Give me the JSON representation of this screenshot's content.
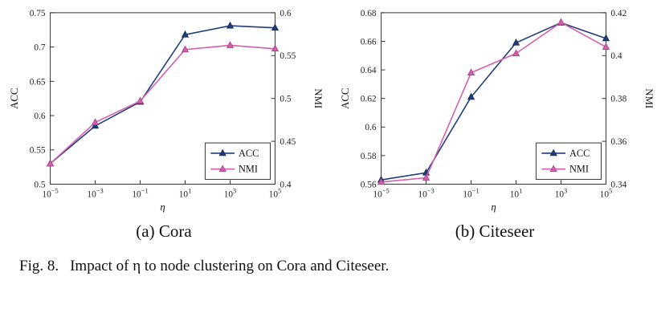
{
  "figure_caption": {
    "label": "Fig. 8.",
    "text": "Impact of η to node clustering on Cora and Citeseer."
  },
  "chart_data": [
    {
      "type": "line",
      "caption": "(a) Cora",
      "xlabel": "η",
      "x_base": "10",
      "x_tick_exponents": [
        "−5",
        "−3",
        "−1",
        "1",
        "3",
        "5"
      ],
      "left_axis": {
        "label": "ACC",
        "min": 0.5,
        "max": 0.75,
        "ticks": [
          0.5,
          0.55,
          0.6,
          0.65,
          0.7,
          0.75
        ],
        "tick_labels": [
          "0.5",
          "0.55",
          "0.6",
          "0.65",
          "0.7",
          "0.75"
        ]
      },
      "right_axis": {
        "label": "NMI",
        "min": 0.4,
        "max": 0.6,
        "ticks": [
          0.4,
          0.45,
          0.5,
          0.55,
          0.6
        ],
        "tick_labels": [
          "0.4",
          "0.45",
          "0.5",
          "0.55",
          "0.6"
        ]
      },
      "series": [
        {
          "name": "ACC",
          "axis": "left",
          "color": "#1f3d7a",
          "edge": "#15294f",
          "values": [
            0.53,
            0.585,
            0.62,
            0.718,
            0.731,
            0.728
          ]
        },
        {
          "name": "NMI",
          "axis": "right",
          "color": "#d45fae",
          "edge": "#a63f86",
          "values": [
            0.424,
            0.472,
            0.497,
            0.557,
            0.562,
            0.558
          ]
        }
      ],
      "legend": {
        "position": "bottom-right",
        "entries": [
          "ACC",
          "NMI"
        ]
      }
    },
    {
      "type": "line",
      "caption": "(b) Citeseer",
      "xlabel": "η",
      "x_base": "10",
      "x_tick_exponents": [
        "−5",
        "−3",
        "−1",
        "1",
        "3",
        "5"
      ],
      "left_axis": {
        "label": "ACC",
        "min": 0.56,
        "max": 0.68,
        "ticks": [
          0.56,
          0.58,
          0.6,
          0.62,
          0.64,
          0.66,
          0.68
        ],
        "tick_labels": [
          "0.56",
          "0.58",
          "0.6",
          "0.62",
          "0.64",
          "0.66",
          "0.68"
        ]
      },
      "right_axis": {
        "label": "NMI",
        "min": 0.34,
        "max": 0.42,
        "ticks": [
          0.34,
          0.36,
          0.38,
          0.4,
          0.42
        ],
        "tick_labels": [
          "0.34",
          "0.36",
          "0.38",
          "0.4",
          "0.42"
        ]
      },
      "series": [
        {
          "name": "ACC",
          "axis": "left",
          "color": "#1f3d7a",
          "edge": "#15294f",
          "values": [
            0.563,
            0.568,
            0.621,
            0.659,
            0.673,
            0.662
          ]
        },
        {
          "name": "NMI",
          "axis": "right",
          "color": "#d45fae",
          "edge": "#a63f86",
          "values": [
            0.341,
            0.343,
            0.392,
            0.401,
            0.4155,
            0.404
          ]
        }
      ],
      "legend": {
        "position": "bottom-right",
        "entries": [
          "ACC",
          "NMI"
        ]
      }
    }
  ]
}
